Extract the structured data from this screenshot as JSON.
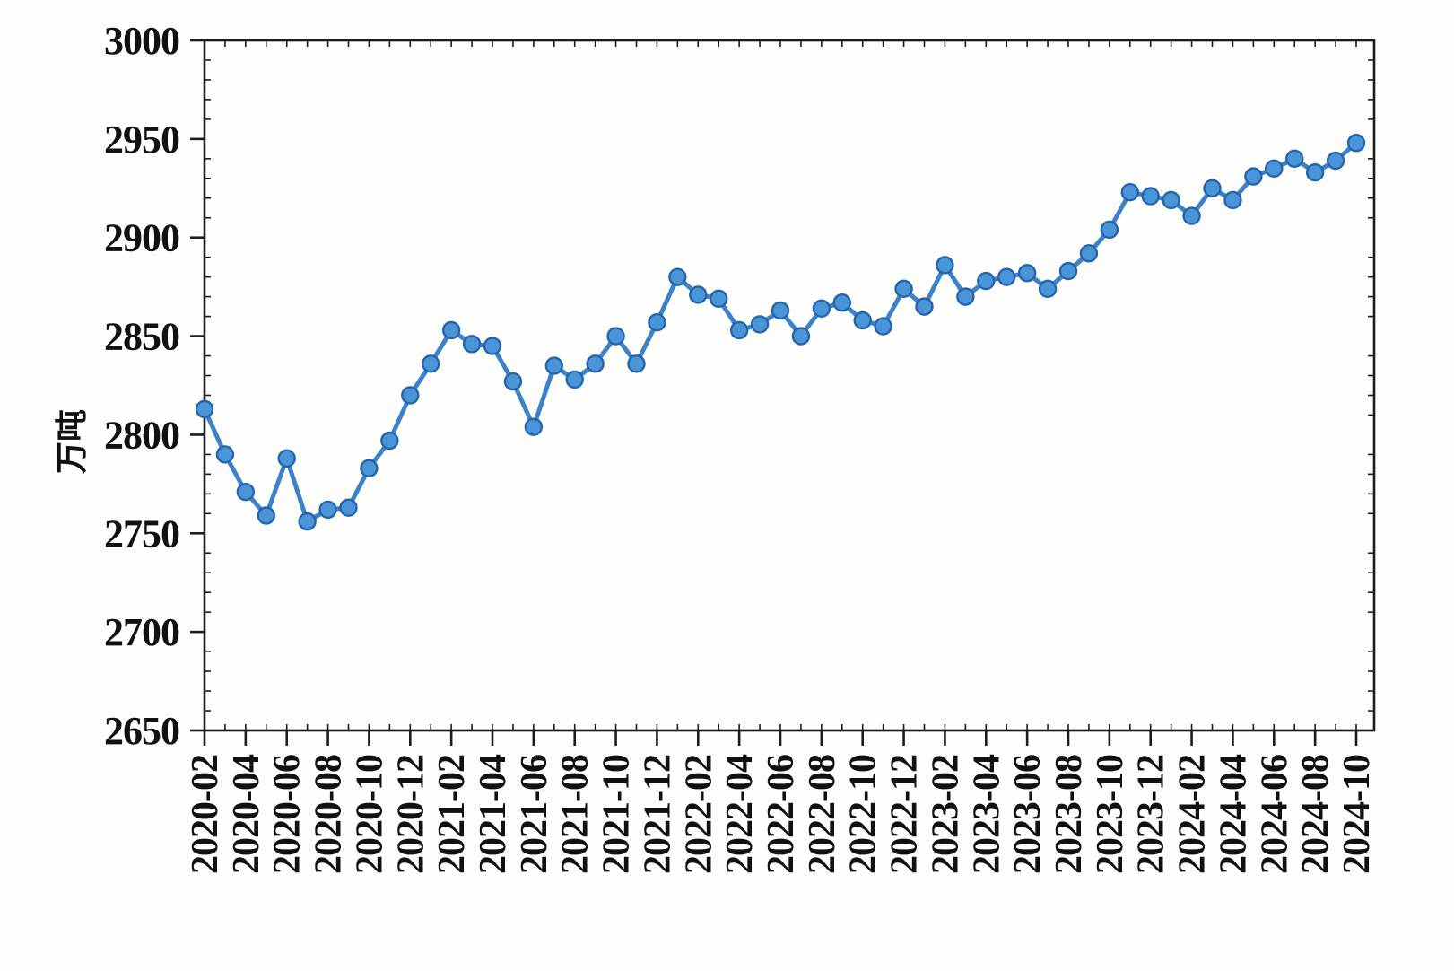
{
  "page": {
    "background": "#fdfdfc"
  },
  "chart_data": {
    "type": "line",
    "title": "",
    "xlabel": "",
    "ylabel": "万吨",
    "ylim": [
      2650,
      3000
    ],
    "ytick_step": 50,
    "ytick_minor_step": 10,
    "yticks": [
      2650,
      2700,
      2750,
      2800,
      2850,
      2900,
      2950,
      3000
    ],
    "xtick_every": 2,
    "grid": false,
    "legend_position": "none",
    "x": [
      "2020-02",
      "2020-03",
      "2020-04",
      "2020-05",
      "2020-06",
      "2020-07",
      "2020-08",
      "2020-09",
      "2020-10",
      "2020-11",
      "2020-12",
      "2021-01",
      "2021-02",
      "2021-03",
      "2021-04",
      "2021-05",
      "2021-06",
      "2021-07",
      "2021-08",
      "2021-09",
      "2021-10",
      "2021-11",
      "2021-12",
      "2022-01",
      "2022-02",
      "2022-03",
      "2022-04",
      "2022-05",
      "2022-06",
      "2022-07",
      "2022-08",
      "2022-09",
      "2022-10",
      "2022-11",
      "2022-12",
      "2023-01",
      "2023-02",
      "2023-03",
      "2023-04",
      "2023-05",
      "2023-06",
      "2023-07",
      "2023-08",
      "2023-09",
      "2023-10",
      "2023-11",
      "2023-12",
      "2024-01",
      "2024-02",
      "2024-03",
      "2024-04",
      "2024-05",
      "2024-06",
      "2024-07",
      "2024-08",
      "2024-09",
      "2024-10"
    ],
    "series": [
      {
        "name": "",
        "values": [
          2813,
          2790,
          2771,
          2759,
          2788,
          2756,
          2762,
          2763,
          2783,
          2797,
          2820,
          2836,
          2853,
          2846,
          2845,
          2827,
          2804,
          2835,
          2828,
          2836,
          2850,
          2836,
          2857,
          2880,
          2871,
          2869,
          2853,
          2856,
          2863,
          2850,
          2864,
          2867,
          2858,
          2855,
          2874,
          2865,
          2886,
          2870,
          2878,
          2880,
          2882,
          2874,
          2883,
          2892,
          2904,
          2923,
          2921,
          2919,
          2911,
          2925,
          2919,
          2931,
          2935,
          2940,
          2933,
          2939,
          2948
        ]
      }
    ],
    "colors": {
      "line": "#3b82c9",
      "marker_fill": "#4a94d8",
      "marker_edge": "#2565ab",
      "axis": "#1c1c1c",
      "text": "#111111"
    }
  }
}
